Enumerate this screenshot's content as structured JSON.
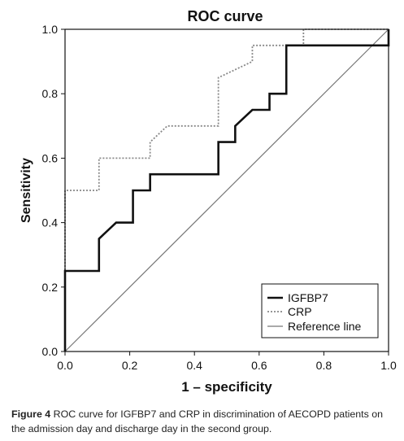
{
  "chart_data": {
    "type": "line",
    "title": "ROC curve",
    "xlabel": "1 – specificity",
    "ylabel": "Sensitivity",
    "xlim": [
      0,
      1
    ],
    "ylim": [
      0,
      1
    ],
    "x_ticks": [
      "0.0",
      "0.2",
      "0.4",
      "0.6",
      "0.8",
      "1.0"
    ],
    "y_ticks": [
      "0.0",
      "0.2",
      "0.4",
      "0.6",
      "0.8",
      "1.0"
    ],
    "grid": false,
    "legend_position": "bottom-right",
    "series": [
      {
        "name": "IGFBP7",
        "style": "solid-thick",
        "color": "#111111",
        "x": [
          0,
          0,
          0.105,
          0.105,
          0.158,
          0.21,
          0.21,
          0.263,
          0.263,
          0.474,
          0.474,
          0.526,
          0.526,
          0.579,
          0.632,
          0.632,
          0.684,
          0.684,
          1.0,
          1.0
        ],
        "y": [
          0,
          0.25,
          0.25,
          0.35,
          0.4,
          0.4,
          0.5,
          0.5,
          0.55,
          0.55,
          0.65,
          0.65,
          0.7,
          0.75,
          0.75,
          0.8,
          0.8,
          0.95,
          0.95,
          1.0
        ]
      },
      {
        "name": "CRP",
        "style": "dotted",
        "color": "#888888",
        "x": [
          0,
          0,
          0.105,
          0.105,
          0.263,
          0.263,
          0.316,
          0.474,
          0.474,
          0.579,
          0.579,
          0.737,
          0.737,
          1.0
        ],
        "y": [
          0,
          0.5,
          0.5,
          0.6,
          0.6,
          0.65,
          0.7,
          0.7,
          0.85,
          0.9,
          0.95,
          0.95,
          1.0,
          1.0
        ]
      },
      {
        "name": "Reference line",
        "style": "solid-thin",
        "color": "#777777",
        "x": [
          0,
          1
        ],
        "y": [
          0,
          1
        ]
      }
    ]
  },
  "caption": {
    "label": "Figure 4",
    "text": " ROC curve for IGFBP7 and CRP in discrimination of AECOPD patients on the admission day and discharge day in the second group."
  }
}
